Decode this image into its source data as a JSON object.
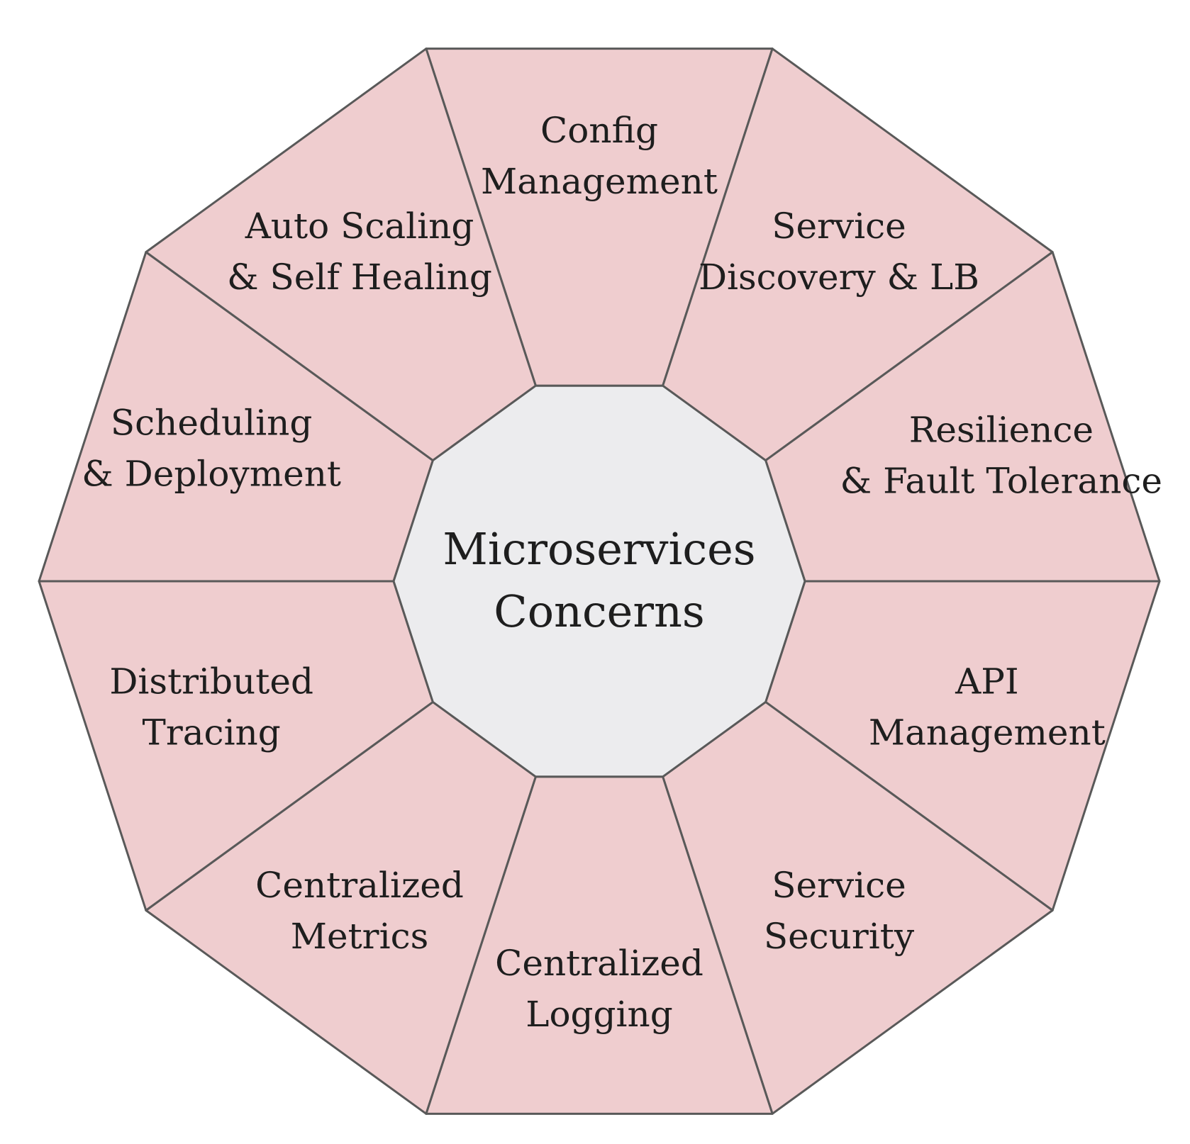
{
  "center": {
    "lines": [
      "Microservices",
      "Concerns"
    ]
  },
  "segments": [
    {
      "key": "config-management",
      "lines": [
        "Config",
        "Management"
      ]
    },
    {
      "key": "service-discovery-lb",
      "lines": [
        "Service",
        "Discovery & LB"
      ]
    },
    {
      "key": "resilience-fault-tolerance",
      "lines": [
        "Resilience",
        "& Fault Tolerance"
      ]
    },
    {
      "key": "api-management",
      "lines": [
        "API",
        "Management"
      ]
    },
    {
      "key": "service-security",
      "lines": [
        "Service",
        "Security"
      ]
    },
    {
      "key": "centralized-logging",
      "lines": [
        "Centralized",
        "Logging"
      ]
    },
    {
      "key": "centralized-metrics",
      "lines": [
        "Centralized",
        "Metrics"
      ]
    },
    {
      "key": "distributed-tracing",
      "lines": [
        "Distributed",
        "Tracing"
      ]
    },
    {
      "key": "scheduling-deployment",
      "lines": [
        "Scheduling",
        "& Deployment"
      ]
    },
    {
      "key": "auto-scaling-self-healing",
      "lines": [
        "Auto Scaling",
        "& Self Healing"
      ]
    }
  ],
  "colors": {
    "segment_fill": "#efcdcf",
    "center_fill": "#ececee",
    "outline": "#595959",
    "text": "#1e1e1e"
  }
}
